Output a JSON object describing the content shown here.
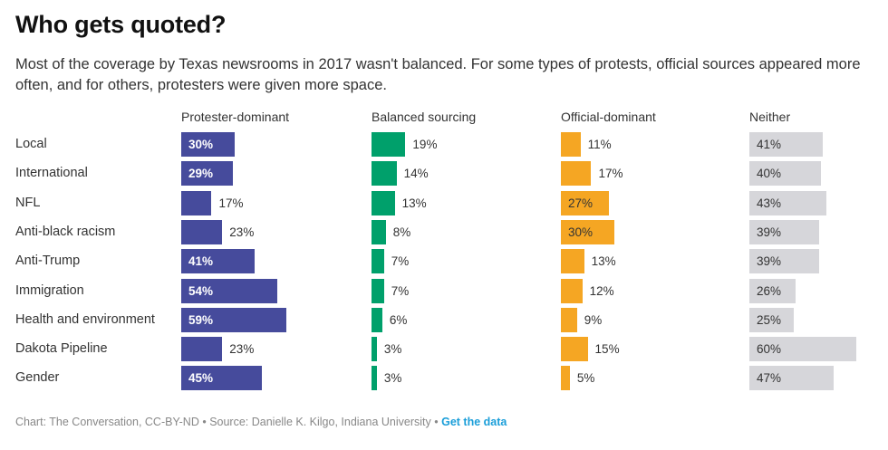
{
  "header": {
    "title": "Who gets quoted?",
    "subtitle": "Most of the coverage by Texas newsrooms in 2017 wasn't balanced. For some types of protests, official sources appeared more often, and for others, protesters were given more space."
  },
  "footer": {
    "credit": "Chart: The Conversation, CC-BY-ND",
    "separator": " • ",
    "source": "Source: Danielle K. Kilgo, Indiana University",
    "link_label": "Get the data"
  },
  "chart_data": {
    "type": "bar",
    "orientation": "horizontal",
    "layout": "small-multiples",
    "title": "Who gets quoted?",
    "value_suffix": "%",
    "categories": [
      "Local",
      "International",
      "NFL",
      "Anti-black racism",
      "Anti-Trump",
      "Immigration",
      "Health and environment",
      "Dakota Pipeline",
      "Gender"
    ],
    "series": [
      {
        "name": "Protester-dominant",
        "color": "#464b9c",
        "label_color_inside": "#ffffff",
        "values": [
          30,
          29,
          17,
          23,
          41,
          54,
          59,
          23,
          45
        ]
      },
      {
        "name": "Balanced sourcing",
        "color": "#00a06b",
        "label_color_inside": "#ffffff",
        "values": [
          19,
          14,
          13,
          8,
          7,
          7,
          6,
          3,
          3
        ]
      },
      {
        "name": "Official-dominant",
        "color": "#f5a623",
        "label_color_inside": "#333333",
        "values": [
          11,
          17,
          27,
          30,
          13,
          12,
          9,
          15,
          5
        ]
      },
      {
        "name": "Neither",
        "color": "#d6d6da",
        "label_color_inside": "#333333",
        "values": [
          41,
          40,
          43,
          39,
          39,
          26,
          25,
          60,
          47
        ]
      }
    ],
    "xlim": [
      0,
      100
    ],
    "grid": false,
    "legend": "column-headers-top"
  }
}
